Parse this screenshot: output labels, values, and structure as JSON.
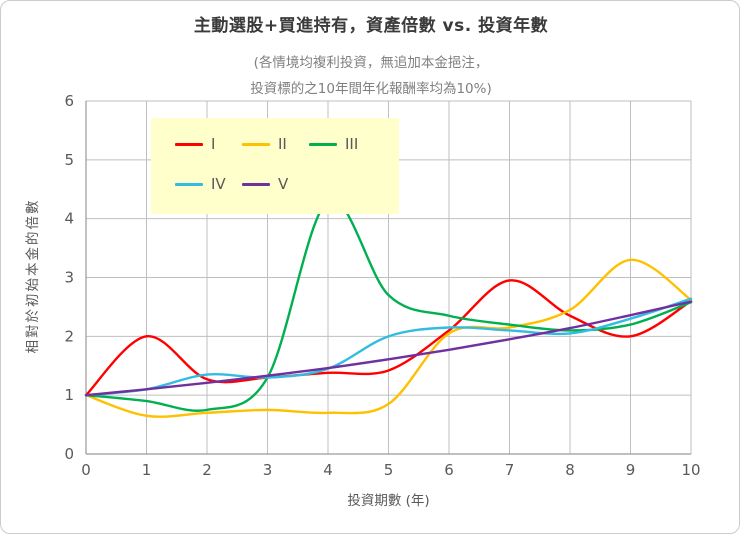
{
  "window": {
    "background": "#ffffff",
    "border_color": "#cccccc"
  },
  "chart_data": {
    "type": "line",
    "title": "主動選股+買進持有，資產倍數 vs. 投資年數",
    "subtitle_line1": "(各情境均複利投資，無追加本金挹注，",
    "subtitle_line2": "投資標的之10年間年化報酬率均為10%)",
    "xlabel": "投資期數 (年)",
    "ylabel": "相對於初始本金的倍數",
    "x": [
      0,
      1,
      2,
      3,
      4,
      5,
      6,
      7,
      8,
      9,
      10
    ],
    "xlim": [
      0,
      10
    ],
    "ylim": [
      0,
      6
    ],
    "x_ticks": [
      0,
      1,
      2,
      3,
      4,
      5,
      6,
      7,
      8,
      9,
      10
    ],
    "y_ticks": [
      0,
      1,
      2,
      3,
      4,
      5,
      6
    ],
    "grid": "both",
    "grid_color": "#bfbfbf",
    "axis_text_color": "#595959",
    "legend_position": "top-left-inside",
    "legend_background": "#ffffcc",
    "series": [
      {
        "name": "I",
        "color": "#ff0000",
        "values": [
          1,
          2.0,
          1.27,
          1.3,
          1.38,
          1.42,
          2.1,
          2.95,
          2.35,
          2.0,
          2.6
        ]
      },
      {
        "name": "II",
        "color": "#ffc000",
        "values": [
          1,
          0.65,
          0.7,
          0.75,
          0.7,
          0.85,
          2.05,
          2.15,
          2.45,
          3.3,
          2.62
        ]
      },
      {
        "name": "III",
        "color": "#00b050",
        "values": [
          1,
          0.9,
          0.75,
          1.3,
          4.3,
          2.7,
          2.35,
          2.2,
          2.1,
          2.2,
          2.58
        ]
      },
      {
        "name": "IV",
        "color": "#33bce2",
        "values": [
          1,
          1.1,
          1.35,
          1.3,
          1.45,
          2.0,
          2.15,
          2.1,
          2.05,
          2.3,
          2.64
        ]
      },
      {
        "name": "V",
        "color": "#7030a0",
        "values": [
          1,
          1.1,
          1.21,
          1.33,
          1.46,
          1.61,
          1.77,
          1.95,
          2.14,
          2.36,
          2.59
        ]
      }
    ]
  }
}
